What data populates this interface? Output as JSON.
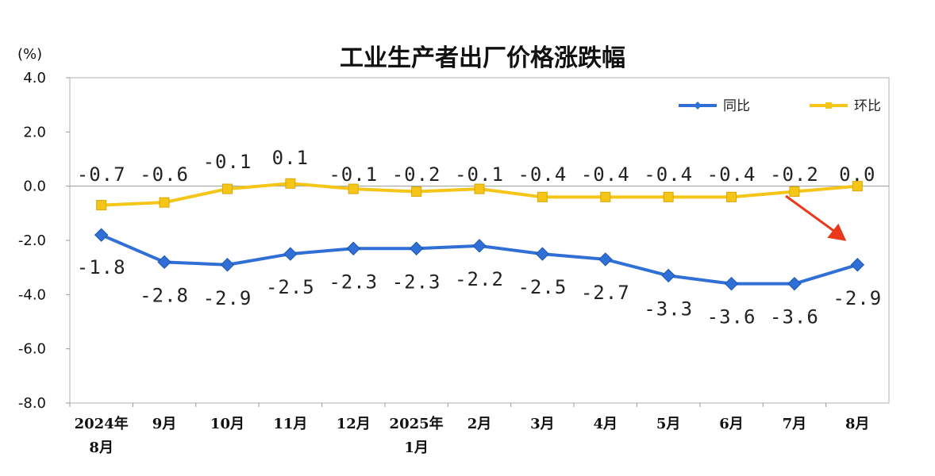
{
  "chart_data": {
    "type": "line",
    "title": "工业生产者出厂价格涨跌幅",
    "ylabel": "(%)",
    "ylim": [
      -8,
      4
    ],
    "yticks": [
      "4.0",
      "2.0",
      "0.0",
      "-2.0",
      "-4.0",
      "-6.0",
      "-8.0"
    ],
    "categories": [
      [
        "2024年",
        "8月"
      ],
      [
        "9月"
      ],
      [
        "10月"
      ],
      [
        "11月"
      ],
      [
        "12月"
      ],
      [
        "2025年",
        "1月"
      ],
      [
        "2月"
      ],
      [
        "3月"
      ],
      [
        "4月"
      ],
      [
        "5月"
      ],
      [
        "6月"
      ],
      [
        "7月"
      ],
      [
        "8月"
      ]
    ],
    "legend_position": "top-right",
    "grid": false,
    "series": [
      {
        "name": "同比",
        "color": "#2f6fd6",
        "marker": "diamond",
        "values": [
          -1.8,
          -2.8,
          -2.9,
          -2.5,
          -2.3,
          -2.3,
          -2.2,
          -2.5,
          -2.7,
          -3.3,
          -3.6,
          -3.6,
          -2.9
        ],
        "labels": [
          "-1.8",
          "-2.8",
          "-2.9",
          "-2.5",
          "-2.3",
          "-2.3",
          "-2.2",
          "-2.5",
          "-2.7",
          "-3.3",
          "-3.6",
          "-3.6",
          "-2.9"
        ]
      },
      {
        "name": "环比",
        "color": "#f5c518",
        "marker": "square",
        "values": [
          -0.7,
          -0.6,
          -0.1,
          0.1,
          -0.1,
          -0.2,
          -0.1,
          -0.4,
          -0.4,
          -0.4,
          -0.4,
          -0.2,
          0.0
        ],
        "labels": [
          "-0.7",
          "-0.6",
          "-0.1",
          "0.1",
          "-0.1",
          "-0.2",
          "-0.1",
          "-0.4",
          "-0.4",
          "-0.4",
          "-0.4",
          "-0.2",
          "0.0"
        ]
      }
    ],
    "annotations": [
      {
        "type": "arrow",
        "color": "#e8391d",
        "target_series": "同比",
        "target_index": 12
      }
    ]
  }
}
